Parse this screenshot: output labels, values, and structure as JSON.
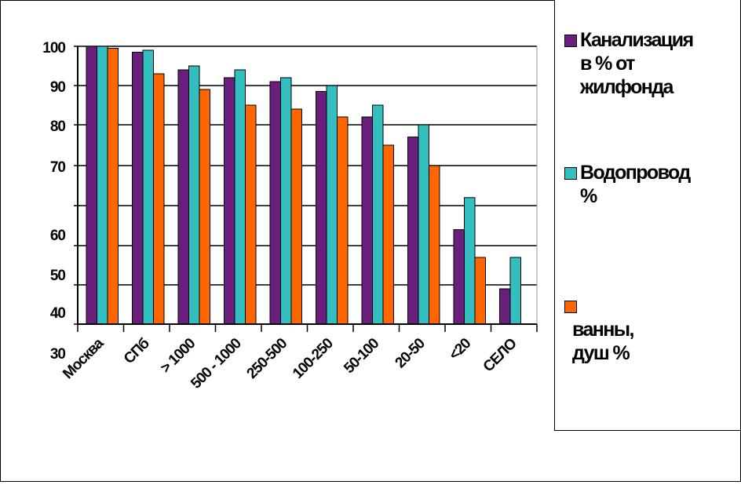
{
  "chart_data": {
    "type": "bar",
    "categories": [
      "Москва",
      "СПб",
      "> 1000",
      "500 - 1000",
      "250-500",
      "100-250",
      "50-100",
      "20-50",
      "<20",
      "СЕЛО"
    ],
    "series": [
      {
        "name": "Канализация в % от жилфонда",
        "color": "#6b1f7c",
        "values": [
          100,
          98.5,
          94,
          92,
          91,
          88.5,
          82,
          77,
          62,
          49
        ]
      },
      {
        "name": "Водопровод %",
        "color": "#33bfbf",
        "values": [
          100,
          99,
          95,
          94,
          92,
          90,
          85,
          80,
          66,
          57
        ]
      },
      {
        "name": "ванны, душ %",
        "color": "#ff6600",
        "values": [
          99.5,
          93,
          89,
          85,
          84,
          82,
          75,
          70,
          57,
          null
        ]
      }
    ],
    "y_ticks": [
      {
        "label": "100",
        "value": 100
      },
      {
        "label": "90",
        "value": 90
      },
      {
        "label": "80",
        "value": 80
      },
      {
        "label": "70",
        "value": 70
      },
      {
        "label": "60",
        "value": 60
      },
      {
        "label": "50",
        "value": 50
      },
      {
        "label": "40",
        "value": 40
      },
      {
        "label": "30",
        "value": 30
      }
    ],
    "ylim": [
      30,
      100
    ],
    "grid": true,
    "legend_position": "right"
  },
  "legend": {
    "items": [
      {
        "label": "Канализация\nв % от\nжилфонда",
        "color": "#6b1f7c"
      },
      {
        "label": "Водопровод\n%",
        "color": "#33bfbf"
      },
      {
        "label": "\nванны, душ %",
        "color": "#ff6600"
      }
    ]
  }
}
